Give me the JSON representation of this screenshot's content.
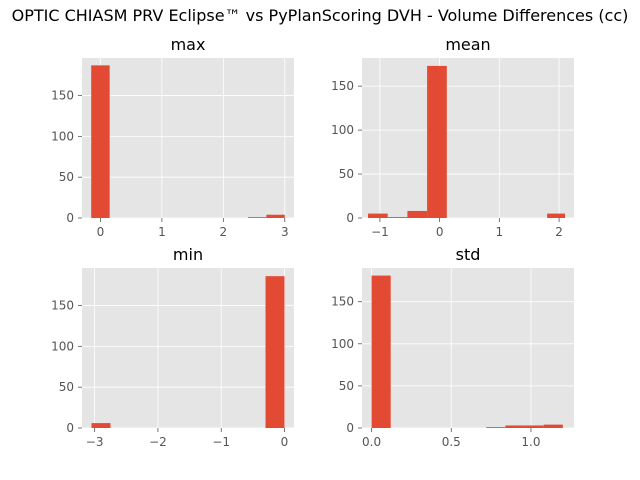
{
  "figure": {
    "suptitle": "OPTIC CHIASM PRV Eclipse™ vs PyPlanScoring DVH - Volume Differences (cc)",
    "style": {
      "background": "#E5E5E5",
      "grid": "#FFFFFF",
      "bar": "#E24A33",
      "tick_text": "#555555"
    }
  },
  "chart_data": [
    {
      "type": "bar",
      "title": "max",
      "xlabel": "",
      "ylabel": "",
      "xlim": [
        -0.3,
        3.15
      ],
      "ylim": [
        0,
        196
      ],
      "xticks": [
        0,
        1,
        2,
        3
      ],
      "xtick_labels": [
        "0",
        "1",
        "2",
        "3"
      ],
      "yticks": [
        0,
        50,
        100,
        150
      ],
      "ytick_labels": [
        "0",
        "50",
        "100",
        "150"
      ],
      "grid": true,
      "bins": [
        [
          -0.15,
          0.15,
          187
        ],
        [
          2.4,
          2.7,
          1
        ],
        [
          2.7,
          3.0,
          4
        ]
      ]
    },
    {
      "type": "bar",
      "title": "mean",
      "xlabel": "",
      "ylabel": "",
      "xlim": [
        -1.3,
        2.25
      ],
      "ylim": [
        0,
        182
      ],
      "xticks": [
        -1,
        0,
        1,
        2
      ],
      "xtick_labels": [
        "−1",
        "0",
        "1",
        "2"
      ],
      "yticks": [
        0,
        50,
        100,
        150
      ],
      "ytick_labels": [
        "0",
        "50",
        "100",
        "150"
      ],
      "grid": true,
      "bins": [
        [
          -1.2,
          -0.87,
          5
        ],
        [
          -0.87,
          -0.54,
          1
        ],
        [
          -0.54,
          -0.21,
          8
        ],
        [
          -0.21,
          0.12,
          173
        ],
        [
          1.8,
          2.1,
          5
        ]
      ]
    },
    {
      "type": "bar",
      "title": "min",
      "xlabel": "",
      "ylabel": "",
      "xlim": [
        -3.2,
        0.15
      ],
      "ylim": [
        0,
        196
      ],
      "xticks": [
        -3,
        -2,
        -1,
        0
      ],
      "xtick_labels": [
        "−3",
        "−2",
        "−1",
        "0"
      ],
      "yticks": [
        0,
        50,
        100,
        150
      ],
      "ytick_labels": [
        "0",
        "50",
        "100",
        "150"
      ],
      "grid": true,
      "bins": [
        [
          -3.05,
          -2.75,
          6
        ],
        [
          -0.3,
          0.0,
          186
        ]
      ]
    },
    {
      "type": "bar",
      "title": "std",
      "xlabel": "",
      "ylabel": "",
      "xlim": [
        -0.06,
        1.27
      ],
      "ylim": [
        0,
        190
      ],
      "xticks": [
        0,
        0.5,
        1
      ],
      "xtick_labels": [
        "0.0",
        "0.5",
        "1.0"
      ],
      "yticks": [
        0,
        50,
        100,
        150
      ],
      "ytick_labels": [
        "0",
        "50",
        "100",
        "150"
      ],
      "grid": true,
      "bins": [
        [
          0.0,
          0.12,
          181
        ],
        [
          0.72,
          0.84,
          1
        ],
        [
          0.84,
          0.96,
          3
        ],
        [
          0.96,
          1.08,
          3
        ],
        [
          1.08,
          1.2,
          4
        ]
      ]
    }
  ]
}
